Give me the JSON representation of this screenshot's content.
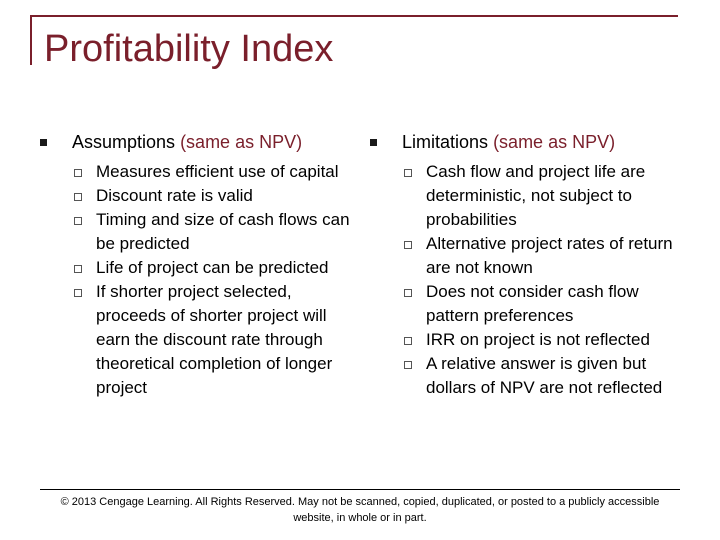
{
  "title": "Profitability Index",
  "left": {
    "heading": "Assumptions",
    "heading_accent": "(same as NPV)",
    "items": [
      "Measures efficient use of capital",
      "Discount rate is valid",
      "Timing and size of cash flows can be predicted",
      "Life of project can be predicted",
      "If shorter project selected, proceeds of shorter  project will earn the discount rate through theoretical completion of longer project"
    ]
  },
  "right": {
    "heading": "Limitations",
    "heading_accent": "(same as NPV)",
    "items": [
      "Cash flow and project life are deterministic, not subject to probabilities",
      "Alternative project rates of return are not known",
      "Does not consider cash flow pattern preferences",
      "IRR on project is not reflected",
      "A relative answer is given but dollars of NPV are not reflected"
    ]
  },
  "footer": "© 2013 Cengage Learning.  All Rights Reserved.  May not be scanned, copied, duplicated, or posted to a publicly accessible website, in whole or in part.",
  "colors": {
    "accent": "#7a1f2b"
  },
  "icons": {
    "level1": "filled-square-bullet",
    "level2": "hollow-square-bullet"
  }
}
